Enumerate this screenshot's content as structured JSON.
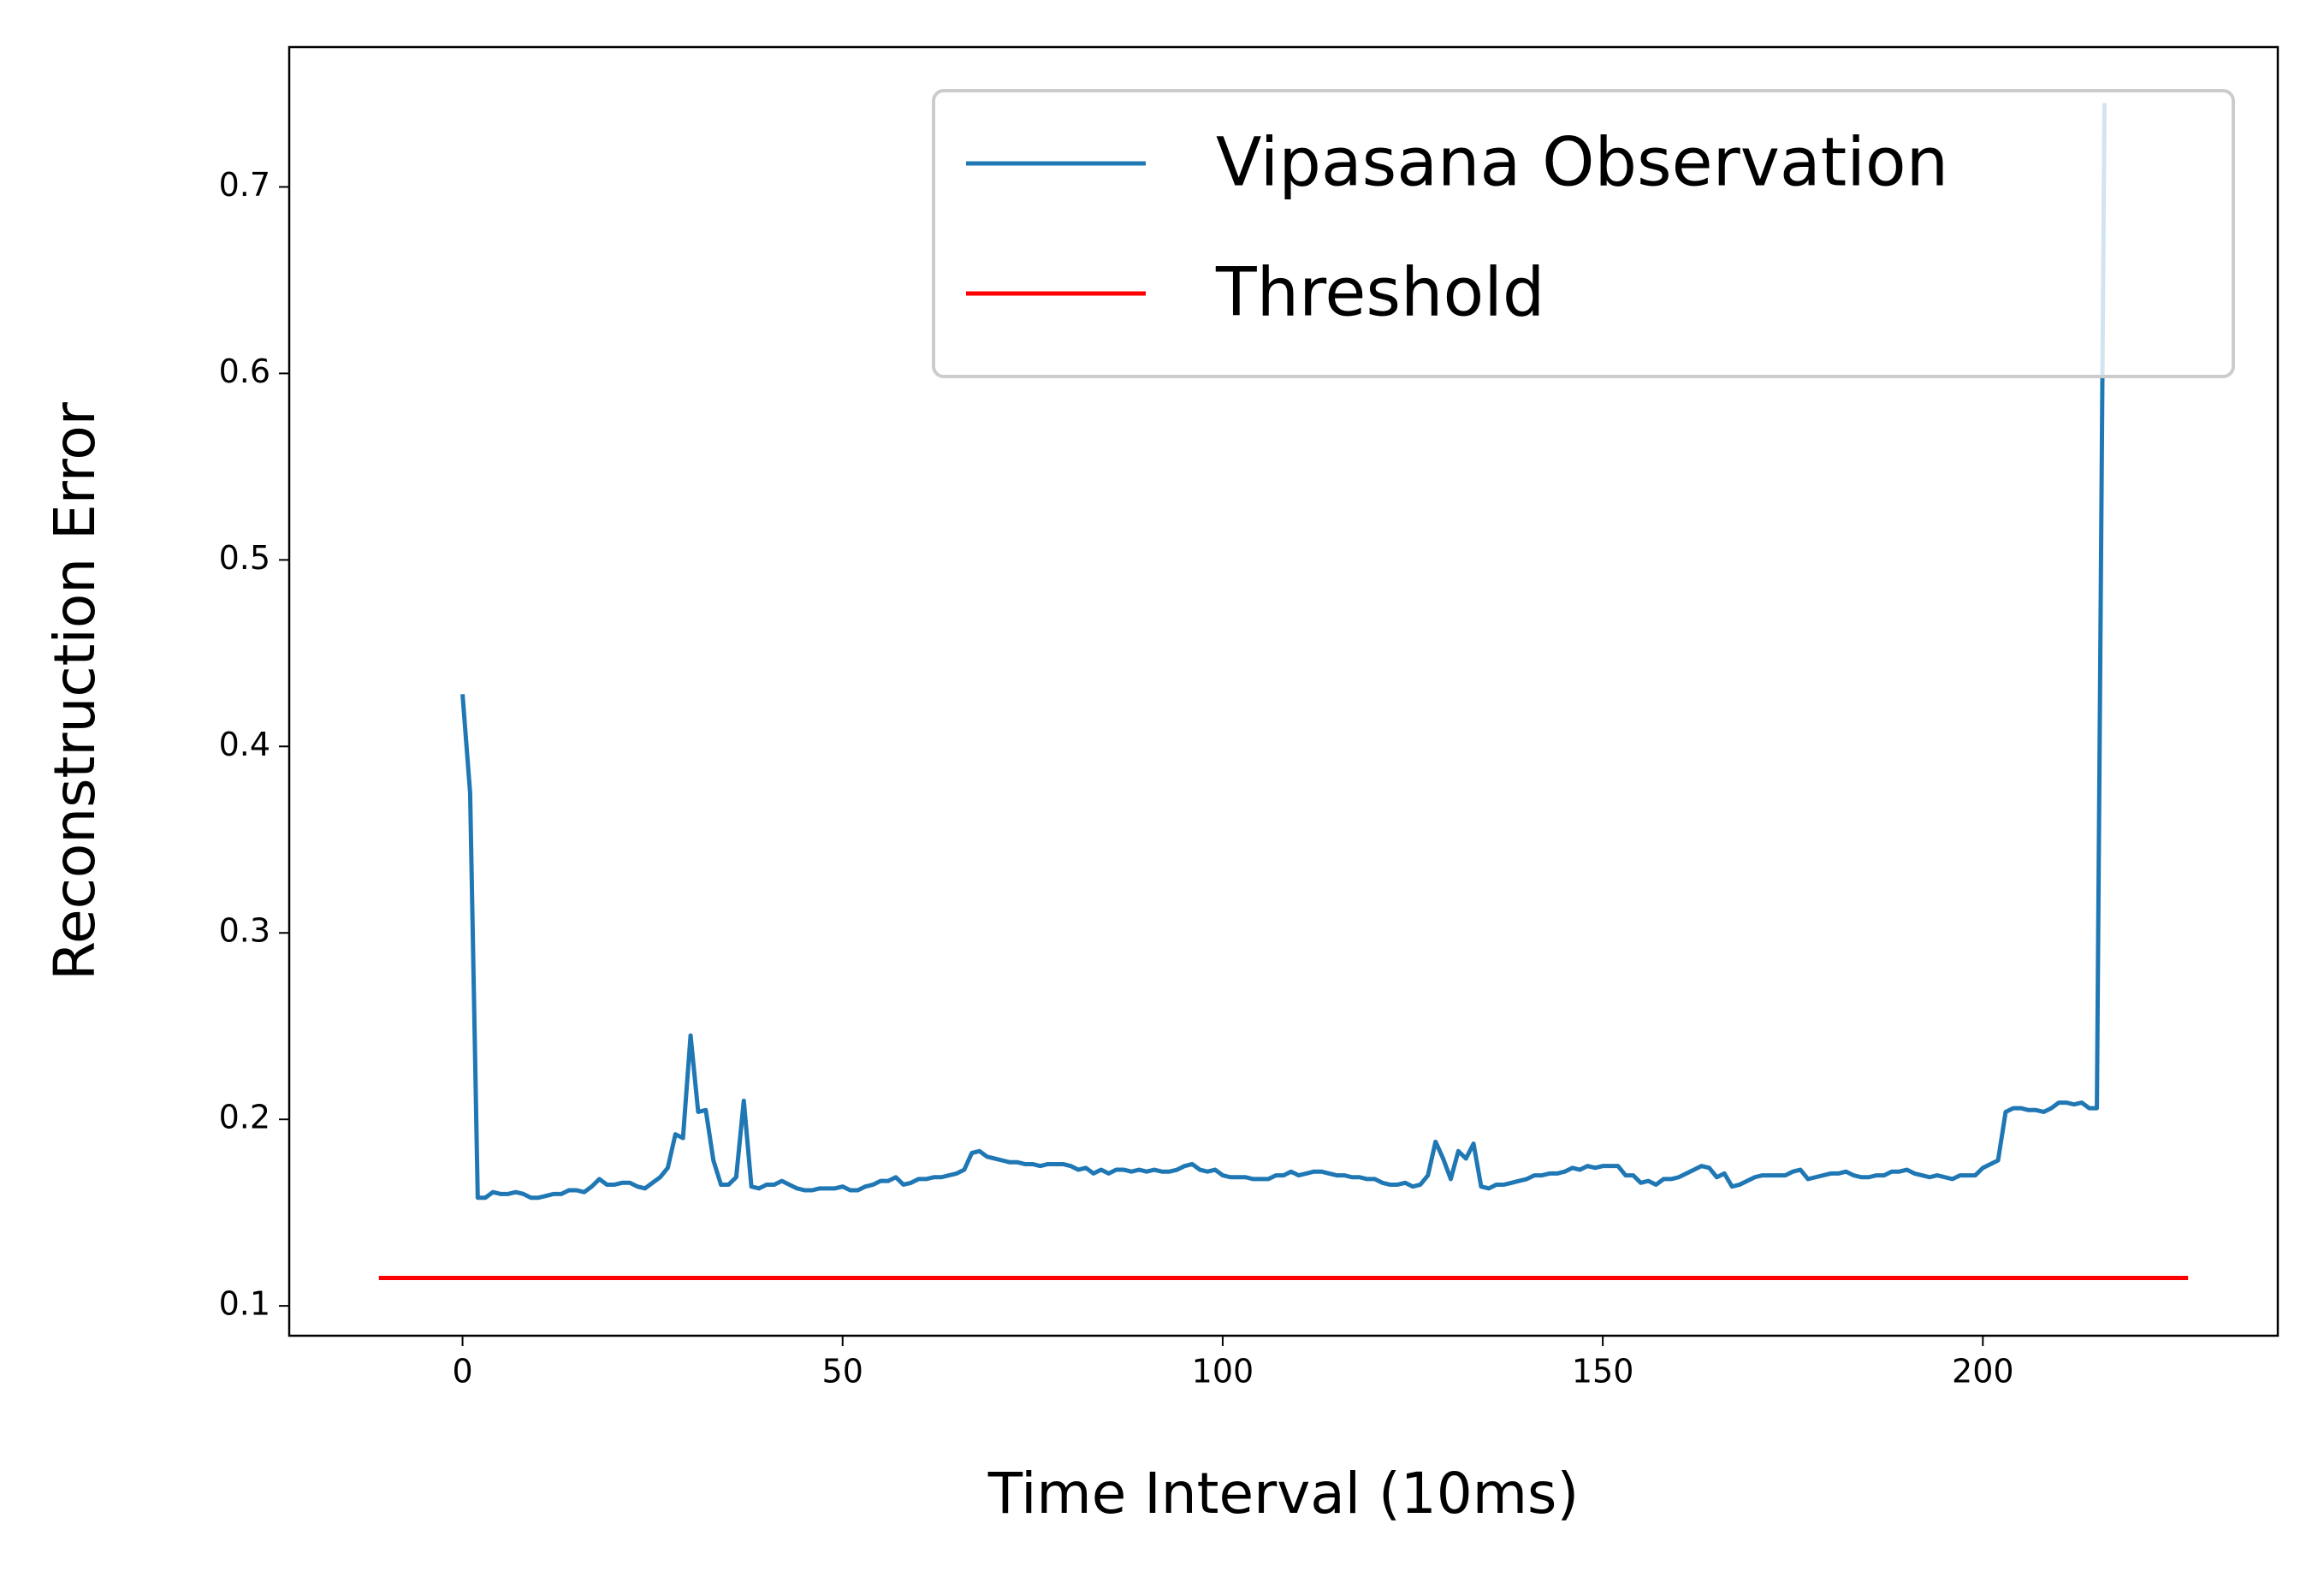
{
  "chart_data": {
    "type": "line",
    "xlabel": "Time Interval (10ms)",
    "ylabel": "Reconstruction Error",
    "xlim": [
      -22.8,
      238.8
    ],
    "ylim": [
      0.084,
      0.775
    ],
    "xticks": [
      0,
      50,
      100,
      150,
      200
    ],
    "yticks": [
      0.1,
      0.2,
      0.3,
      0.4,
      0.5,
      0.6,
      0.7
    ],
    "grid": false,
    "legend": "upper right",
    "series": [
      {
        "name": "Vipasana Observation",
        "color": "#1f77b4",
        "x": [
          0,
          1,
          2,
          3,
          4,
          5,
          6,
          7,
          8,
          9,
          10,
          11,
          12,
          13,
          14,
          15,
          16,
          17,
          18,
          19,
          20,
          21,
          22,
          23,
          24,
          25,
          26,
          27,
          28,
          29,
          30,
          31,
          32,
          33,
          34,
          35,
          36,
          37,
          38,
          39,
          40,
          41,
          42,
          43,
          44,
          45,
          46,
          47,
          48,
          49,
          50,
          51,
          52,
          53,
          54,
          55,
          56,
          57,
          58,
          59,
          60,
          61,
          62,
          63,
          64,
          65,
          66,
          67,
          68,
          69,
          70,
          71,
          72,
          73,
          74,
          75,
          76,
          77,
          78,
          79,
          80,
          81,
          82,
          83,
          84,
          85,
          86,
          87,
          88,
          89,
          90,
          91,
          92,
          93,
          94,
          95,
          96,
          97,
          98,
          99,
          100,
          101,
          102,
          103,
          104,
          105,
          106,
          107,
          108,
          109,
          110,
          111,
          112,
          113,
          114,
          115,
          116,
          117,
          118,
          119,
          120,
          121,
          122,
          123,
          124,
          125,
          126,
          127,
          128,
          129,
          130,
          131,
          132,
          133,
          134,
          135,
          136,
          137,
          138,
          139,
          140,
          141,
          142,
          143,
          144,
          145,
          146,
          147,
          148,
          149,
          150,
          151,
          152,
          153,
          154,
          155,
          156,
          157,
          158,
          159,
          160,
          161,
          162,
          163,
          164,
          165,
          166,
          167,
          168,
          169,
          170,
          171,
          172,
          173,
          174,
          175,
          176,
          177,
          178,
          179,
          180,
          181,
          182,
          183,
          184,
          185,
          186,
          187,
          188,
          189,
          190,
          191,
          192,
          193,
          194,
          195,
          196,
          197,
          198,
          199,
          200,
          201,
          202,
          203,
          204,
          205,
          206,
          207,
          208,
          209,
          210,
          211,
          212,
          213,
          214,
          215,
          216
        ],
        "values": [
          0.428,
          0.375,
          0.158,
          0.158,
          0.161,
          0.16,
          0.16,
          0.161,
          0.16,
          0.158,
          0.158,
          0.159,
          0.16,
          0.16,
          0.162,
          0.162,
          0.161,
          0.164,
          0.168,
          0.165,
          0.165,
          0.166,
          0.166,
          0.164,
          0.163,
          0.166,
          0.169,
          0.174,
          0.192,
          0.19,
          0.245,
          0.204,
          0.205,
          0.178,
          0.165,
          0.165,
          0.169,
          0.21,
          0.164,
          0.163,
          0.165,
          0.165,
          0.167,
          0.165,
          0.163,
          0.162,
          0.162,
          0.163,
          0.163,
          0.163,
          0.164,
          0.162,
          0.162,
          0.164,
          0.165,
          0.167,
          0.167,
          0.169,
          0.165,
          0.166,
          0.168,
          0.168,
          0.169,
          0.169,
          0.17,
          0.171,
          0.173,
          0.182,
          0.183,
          0.18,
          0.179,
          0.178,
          0.177,
          0.177,
          0.176,
          0.176,
          0.175,
          0.176,
          0.176,
          0.176,
          0.175,
          0.173,
          0.174,
          0.171,
          0.173,
          0.171,
          0.173,
          0.173,
          0.172,
          0.173,
          0.172,
          0.173,
          0.172,
          0.172,
          0.173,
          0.175,
          0.176,
          0.173,
          0.172,
          0.173,
          0.17,
          0.169,
          0.169,
          0.169,
          0.168,
          0.168,
          0.168,
          0.17,
          0.17,
          0.172,
          0.17,
          0.171,
          0.172,
          0.172,
          0.171,
          0.17,
          0.17,
          0.169,
          0.169,
          0.168,
          0.168,
          0.166,
          0.165,
          0.165,
          0.166,
          0.164,
          0.165,
          0.17,
          0.188,
          0.179,
          0.168,
          0.183,
          0.179,
          0.187,
          0.164,
          0.163,
          0.165,
          0.165,
          0.166,
          0.167,
          0.168,
          0.17,
          0.17,
          0.171,
          0.171,
          0.172,
          0.174,
          0.173,
          0.175,
          0.174,
          0.175,
          0.175,
          0.175,
          0.17,
          0.17,
          0.166,
          0.167,
          0.165,
          0.168,
          0.168,
          0.169,
          0.171,
          0.173,
          0.175,
          0.174,
          0.169,
          0.171,
          0.164,
          0.165,
          0.167,
          0.169,
          0.17,
          0.17,
          0.17,
          0.17,
          0.172,
          0.173,
          0.168,
          0.169,
          0.17,
          0.171,
          0.171,
          0.172,
          0.17,
          0.169,
          0.169,
          0.17,
          0.17,
          0.172,
          0.172,
          0.173,
          0.171,
          0.17,
          0.169,
          0.17,
          0.169,
          0.168,
          0.17,
          0.17,
          0.17,
          0.174,
          0.176,
          0.178,
          0.204,
          0.206,
          0.206,
          0.205,
          0.205,
          0.204,
          0.206,
          0.209,
          0.209,
          0.208,
          0.209,
          0.206,
          0.206,
          0.745
        ]
      },
      {
        "name": "Threshold",
        "color": "#ff0000",
        "x": [
          -11,
          227
        ],
        "values": [
          0.115,
          0.115
        ]
      }
    ]
  }
}
